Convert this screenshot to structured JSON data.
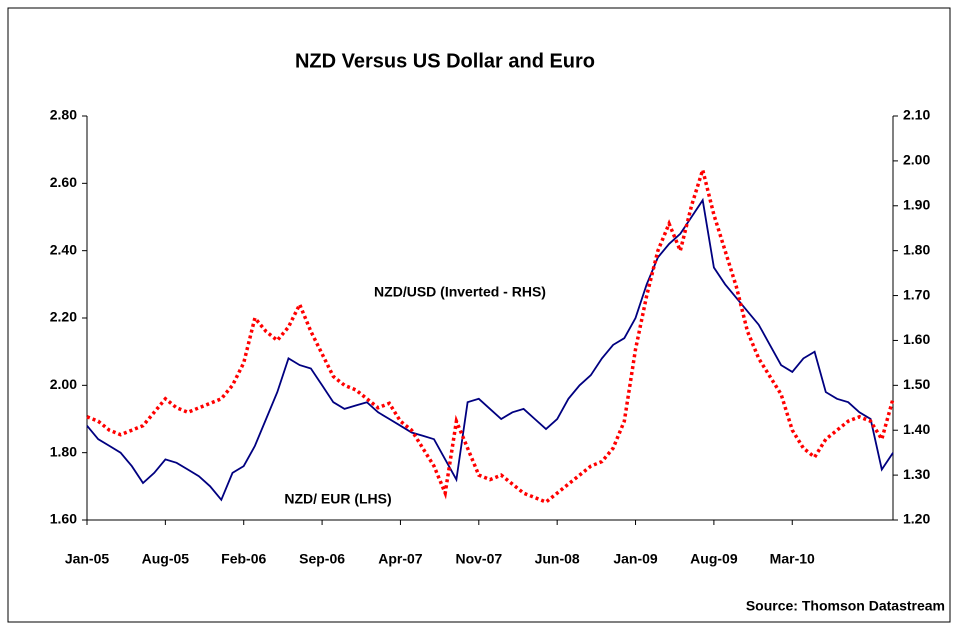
{
  "chart_data": {
    "type": "line",
    "title": "NZD Versus US Dollar and Euro",
    "source": "Source: Thomson Datastream",
    "categories": [
      "Jan-05",
      null,
      null,
      null,
      null,
      null,
      null,
      "Aug-05",
      null,
      null,
      null,
      null,
      null,
      null,
      "Feb-06",
      null,
      null,
      null,
      null,
      null,
      null,
      "Sep-06",
      null,
      null,
      null,
      null,
      null,
      null,
      "Apr-07",
      null,
      null,
      null,
      null,
      null,
      null,
      "Nov-07",
      null,
      null,
      null,
      null,
      null,
      null,
      "Jun-08",
      null,
      null,
      null,
      null,
      null,
      null,
      "Jan-09",
      null,
      null,
      null,
      null,
      null,
      null,
      "Aug-09",
      null,
      null,
      null,
      null,
      null,
      null,
      "Mar-10",
      null,
      null,
      null,
      null,
      null,
      null,
      null,
      null,
      null
    ],
    "series": [
      {
        "name": "NZD/ EUR (LHS)",
        "color": "#000080",
        "axis": "y",
        "values": [
          1.88,
          1.84,
          1.82,
          1.8,
          1.76,
          1.71,
          1.74,
          1.78,
          1.77,
          1.75,
          1.73,
          1.7,
          1.66,
          1.74,
          1.76,
          1.82,
          1.9,
          1.98,
          2.08,
          2.06,
          2.05,
          2.0,
          1.95,
          1.93,
          1.94,
          1.95,
          1.92,
          1.9,
          1.88,
          1.86,
          1.85,
          1.84,
          1.78,
          1.72,
          1.95,
          1.96,
          1.93,
          1.9,
          1.92,
          1.93,
          1.9,
          1.87,
          1.9,
          1.96,
          2.0,
          2.03,
          2.08,
          2.12,
          2.14,
          2.2,
          2.3,
          2.38,
          2.42,
          2.45,
          2.5,
          2.55,
          2.35,
          2.3,
          2.26,
          2.22,
          2.18,
          2.12,
          2.06,
          2.04,
          2.08,
          2.1,
          1.98,
          1.96,
          1.95,
          1.92,
          1.9,
          1.75,
          1.8
        ]
      },
      {
        "name": "NZD/USD (Inverted - RHS)",
        "color": "#ff0000",
        "axis": "y2",
        "values": [
          1.43,
          1.42,
          1.4,
          1.39,
          1.4,
          1.41,
          1.44,
          1.47,
          1.45,
          1.44,
          1.45,
          1.46,
          1.47,
          1.5,
          1.55,
          1.65,
          1.62,
          1.6,
          1.63,
          1.68,
          1.62,
          1.57,
          1.52,
          1.5,
          1.49,
          1.47,
          1.45,
          1.46,
          1.42,
          1.4,
          1.36,
          1.32,
          1.26,
          1.42,
          1.36,
          1.3,
          1.29,
          1.3,
          1.28,
          1.26,
          1.25,
          1.24,
          1.26,
          1.28,
          1.3,
          1.32,
          1.33,
          1.36,
          1.42,
          1.58,
          1.7,
          1.8,
          1.86,
          1.8,
          1.9,
          1.98,
          1.88,
          1.8,
          1.72,
          1.62,
          1.56,
          1.52,
          1.48,
          1.4,
          1.36,
          1.34,
          1.38,
          1.4,
          1.42,
          1.43,
          1.42,
          1.38,
          1.47
        ]
      }
    ],
    "ylim": [
      1.6,
      2.8
    ],
    "yticks": [
      {
        "value": 1.6,
        "label": "1.60"
      },
      {
        "value": 1.8,
        "label": "1.80"
      },
      {
        "value": 2.0,
        "label": "2.00"
      },
      {
        "value": 2.2,
        "label": "2.20"
      },
      {
        "value": 2.4,
        "label": "2.40"
      },
      {
        "value": 2.6,
        "label": "2.60"
      },
      {
        "value": 2.8,
        "label": "2.80"
      }
    ],
    "y2lim": [
      1.2,
      2.1
    ],
    "y2ticks": [
      {
        "value": 1.2,
        "label": "1.20"
      },
      {
        "value": 1.3,
        "label": "1.30"
      },
      {
        "value": 1.4,
        "label": "1.40"
      },
      {
        "value": 1.5,
        "label": "1.50"
      },
      {
        "value": 1.6,
        "label": "1.60"
      },
      {
        "value": 1.7,
        "label": "1.70"
      },
      {
        "value": 1.8,
        "label": "1.80"
      },
      {
        "value": 1.9,
        "label": "1.90"
      },
      {
        "value": 2.0,
        "label": "2.00"
      },
      {
        "value": 2.1,
        "label": "2.10"
      }
    ],
    "grid": false
  }
}
